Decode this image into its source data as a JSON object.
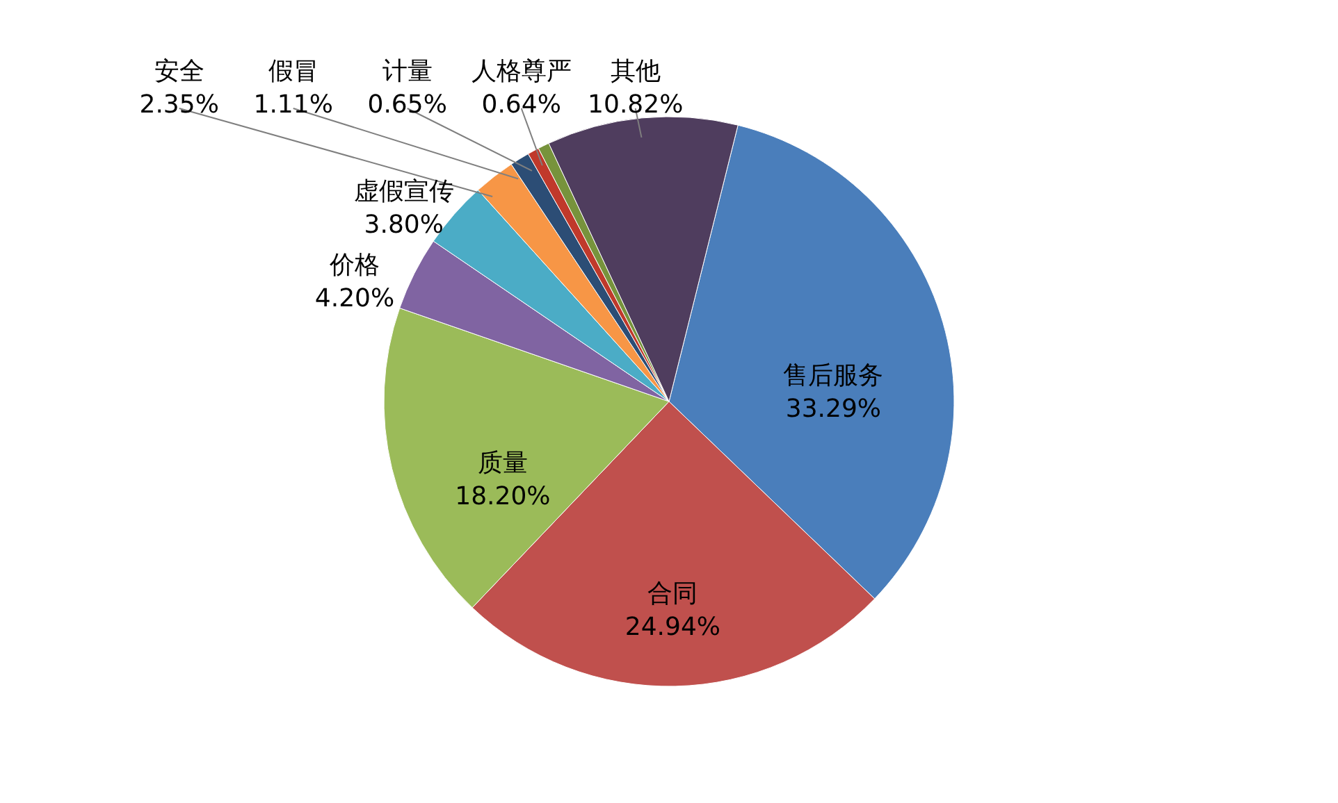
{
  "chart_data": {
    "type": "pie",
    "categories": [
      "售后服务",
      "合同",
      "质量",
      "价格",
      "虚假宣传",
      "安全",
      "假冒",
      "计量",
      "人格尊严",
      "其他"
    ],
    "values": [
      33.29,
      24.94,
      18.2,
      4.2,
      3.8,
      2.35,
      1.11,
      0.65,
      0.64,
      10.82
    ],
    "value_labels": [
      "33.29%",
      "24.94%",
      "18.20%",
      "4.20%",
      "3.80%",
      "2.35%",
      "1.11%",
      "0.65%",
      "0.64%",
      "10.82%"
    ],
    "colors": [
      "#4a7ebb",
      "#c0504d",
      "#9bbb59",
      "#8064a2",
      "#4bacc6",
      "#f79646",
      "#2c4d75",
      "#c0392b",
      "#77933c",
      "#4f3d5e"
    ]
  }
}
